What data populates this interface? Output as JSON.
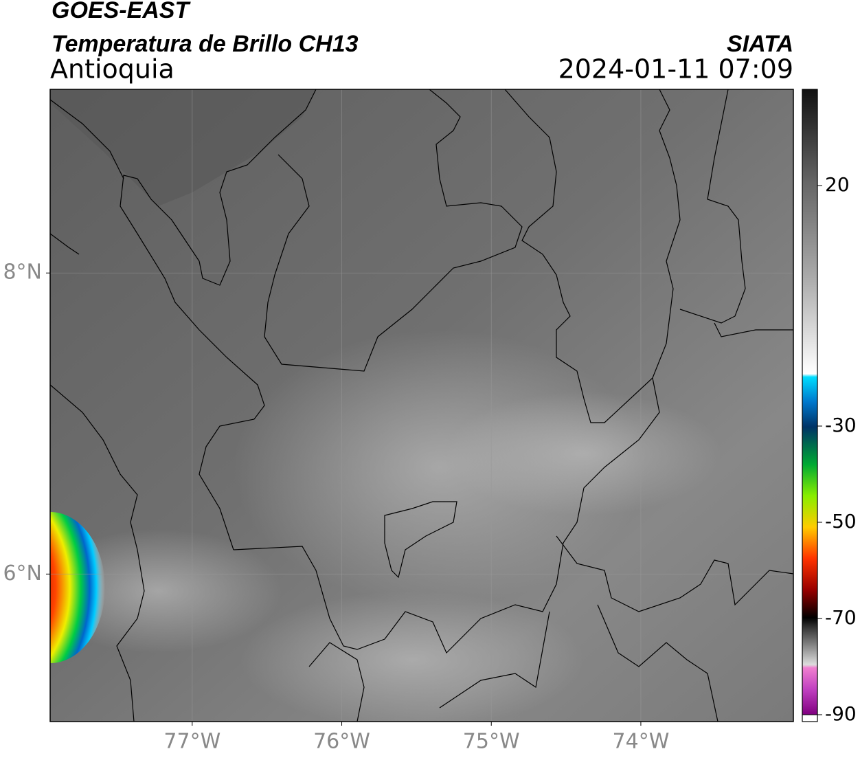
{
  "header": {
    "title": "GOES-EAST",
    "subtitle": "Temperatura de Brillo CH13",
    "region": "Antioquia",
    "source": "SIATA",
    "timestamp": "2024-01-11 07:09"
  },
  "map": {
    "lonlim": [
      -77.95,
      -72.98
    ],
    "latlim": [
      5.02,
      9.22
    ],
    "lonticks": [
      {
        "value": -77,
        "label": "77°W"
      },
      {
        "value": -76,
        "label": "76°W"
      },
      {
        "value": -75,
        "label": "75°W"
      },
      {
        "value": -74,
        "label": "74°W"
      }
    ],
    "latticks": [
      {
        "value": 8,
        "label": "8°N"
      },
      {
        "value": 6,
        "label": "6°N"
      }
    ]
  },
  "colorbar": {
    "lim": [
      -90,
      40
    ],
    "ticks": [
      20,
      -30,
      -50,
      -70,
      -90
    ]
  }
}
